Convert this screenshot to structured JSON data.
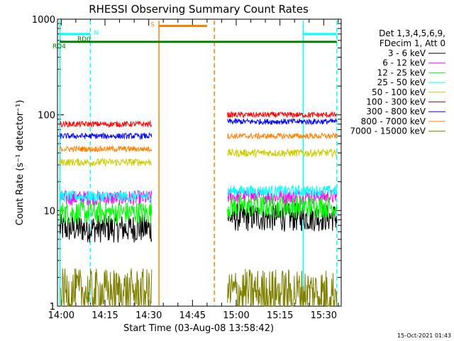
{
  "chart_data": {
    "type": "line",
    "title": "RHESSI Observing Summary Count Rates",
    "xlabel": "Start Time (03-Aug-08 13:58:42)",
    "ylabel": "Count Rate (s⁻¹ detector⁻¹)",
    "y_scale": "log",
    "ylim": [
      1,
      1000
    ],
    "xlim": [
      "13:58:42",
      "15:36:00"
    ],
    "x_ticks": [
      "14:00",
      "14:15",
      "14:30",
      "14:45",
      "15:00",
      "15:15",
      "15:30"
    ],
    "y_ticks": [
      "1",
      "10",
      "100",
      "1000"
    ],
    "legend_position": "top-right",
    "legend_header": [
      "Det 1,3,4,5,6,9,",
      "FDecim 1, Att 0"
    ],
    "series": [
      {
        "name": "3 - 6 keV",
        "color": "#000000",
        "segments": [
          {
            "start": "13:59:30",
            "end": "14:31:00",
            "level": 6.5,
            "noise": 0.15
          },
          {
            "start": "14:57:00",
            "end": "15:34:30",
            "level": 8.5,
            "noise": 0.15
          }
        ]
      },
      {
        "name": "6 - 12 keV",
        "color": "#ff00ff",
        "segments": [
          {
            "start": "13:59:30",
            "end": "14:31:00",
            "level": 13.5,
            "noise": 0.08
          },
          {
            "start": "14:57:00",
            "end": "15:34:30",
            "level": 14,
            "noise": 0.08
          }
        ]
      },
      {
        "name": "12 - 25 keV",
        "color": "#00ff00",
        "segments": [
          {
            "start": "13:59:30",
            "end": "14:31:00",
            "level": 9.5,
            "noise": 0.12
          },
          {
            "start": "14:57:00",
            "end": "15:34:30",
            "level": 11,
            "noise": 0.12
          }
        ]
      },
      {
        "name": "25 - 50 keV",
        "color": "#00ffff",
        "segments": [
          {
            "start": "13:59:30",
            "end": "14:31:00",
            "level": 14,
            "noise": 0.06
          },
          {
            "start": "14:57:00",
            "end": "15:34:30",
            "level": 16,
            "noise": 0.06
          }
        ]
      },
      {
        "name": "50 - 100 keV",
        "color": "#cccc00",
        "segments": [
          {
            "start": "13:59:30",
            "end": "14:31:00",
            "level": 32,
            "noise": 0.04
          },
          {
            "start": "14:57:00",
            "end": "15:34:30",
            "level": 40,
            "noise": 0.04
          }
        ]
      },
      {
        "name": "100 - 300 keV",
        "color": "#ff0000",
        "segments": [
          {
            "start": "13:59:30",
            "end": "14:31:00",
            "level": 80,
            "noise": 0.03
          },
          {
            "start": "14:57:00",
            "end": "15:34:30",
            "level": 100,
            "noise": 0.03
          }
        ]
      },
      {
        "name": "300 - 800 keV",
        "color": "#0000ff",
        "segments": [
          {
            "start": "13:59:30",
            "end": "14:31:00",
            "level": 60,
            "noise": 0.03
          },
          {
            "start": "14:57:00",
            "end": "15:34:30",
            "level": 85,
            "noise": 0.03
          }
        ]
      },
      {
        "name": "800 - 7000 keV",
        "color": "#ff8000",
        "segments": [
          {
            "start": "13:59:30",
            "end": "14:31:00",
            "level": 44,
            "noise": 0.03
          },
          {
            "start": "14:57:00",
            "end": "15:34:30",
            "level": 60,
            "noise": 0.03
          }
        ]
      },
      {
        "name": "7000 - 15000 keV",
        "color": "#808000",
        "segments": [
          {
            "start": "13:59:30",
            "end": "14:31:00",
            "level": 1.4,
            "noise": 0.25
          },
          {
            "start": "14:57:00",
            "end": "15:34:30",
            "level": 1.4,
            "noise": 0.25
          }
        ]
      }
    ],
    "annotations": [
      {
        "label": "N",
        "color": "#00ffff",
        "bar_start": "13:59:30",
        "bar_end": "14:10:00",
        "y": 700
      },
      {
        "label": "",
        "color": "#00ffff",
        "bar_start": "15:23:00",
        "bar_end": "15:34:30",
        "y": 700
      },
      {
        "label": "RD4",
        "color": "#008000",
        "bar_start": "13:59:30",
        "bar_end": "15:34:30",
        "y": 580
      },
      {
        "label": "RD0",
        "color": "#008000",
        "bar_start": "",
        "bar_end": "",
        "y": 580
      },
      {
        "label": "S",
        "color": "#ff8000",
        "bar_start": "14:33:30",
        "bar_end": "14:50:00",
        "y": 850
      }
    ],
    "vertical_markers": [
      {
        "time": "13:59:30",
        "color": "#00ffff",
        "style": "solid"
      },
      {
        "time": "14:10:00",
        "color": "#00ffff",
        "style": "dashed"
      },
      {
        "time": "14:33:30",
        "color": "#ff8000",
        "style": "solid"
      },
      {
        "time": "14:52:30",
        "color": "#ff8000",
        "style": "dashed"
      },
      {
        "time": "15:23:00",
        "color": "#00ffff",
        "style": "solid"
      },
      {
        "time": "15:34:30",
        "color": "#00ffff",
        "style": "dashed"
      }
    ],
    "timestamp": "15-Oct-2021 01:43"
  }
}
